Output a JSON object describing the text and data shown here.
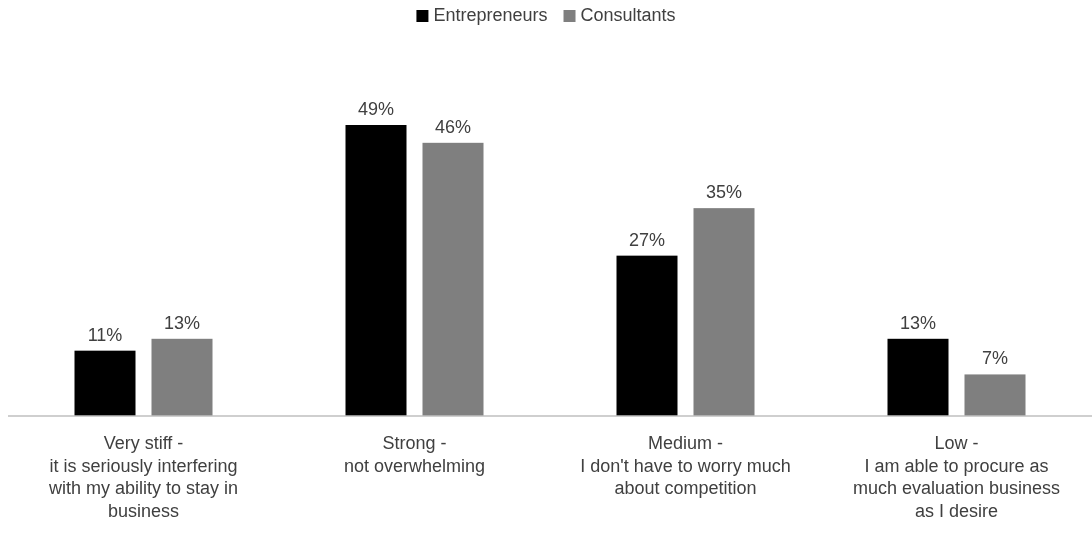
{
  "chart_data": {
    "type": "bar",
    "categories": [
      "Very stiff -\nit is seriously interfering\nwith my ability to stay in\nbusiness",
      "Strong -\nnot overwhelming",
      "Medium -\nI don't have to worry much\nabout competition",
      "Low -\nI am able to procure as\nmuch evaluation business\nas I desire"
    ],
    "series": [
      {
        "name": "Entrepreneurs",
        "color": "#000000",
        "values": [
          11,
          49,
          27,
          13
        ],
        "value_labels": [
          "11%",
          "49%",
          "27%",
          "13%"
        ]
      },
      {
        "name": "Consultants",
        "color": "#7f7f7f",
        "values": [
          13,
          46,
          35,
          7
        ],
        "value_labels": [
          "13%",
          "46%",
          "35%",
          "7%"
        ]
      }
    ],
    "legend": "top"
  }
}
